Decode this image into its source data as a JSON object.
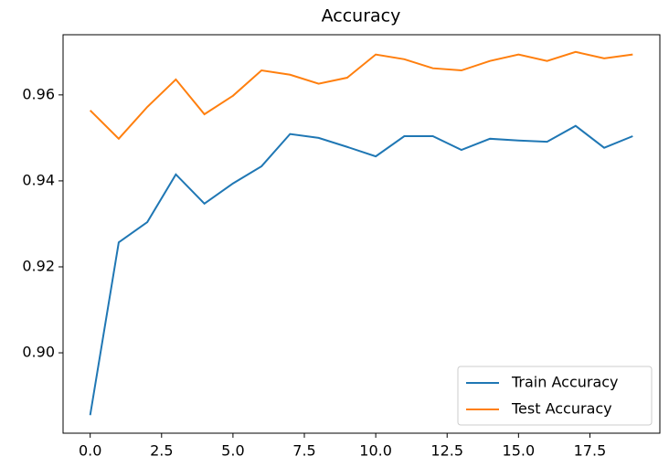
{
  "chart_data": {
    "type": "line",
    "title": "Accuracy",
    "x": [
      0,
      1,
      2,
      3,
      4,
      5,
      6,
      7,
      8,
      9,
      10,
      11,
      12,
      13,
      14,
      15,
      16,
      17,
      18,
      19
    ],
    "series": [
      {
        "name": "Train Accuracy",
        "color": "#1f77b4",
        "values": [
          0.8855,
          0.9257,
          0.9304,
          0.9415,
          0.9347,
          0.9394,
          0.9434,
          0.9509,
          0.95,
          0.9479,
          0.9457,
          0.9504,
          0.9504,
          0.9472,
          0.9498,
          0.9494,
          0.9491,
          0.9528,
          0.9477,
          0.9504
        ]
      },
      {
        "name": "Test Accuracy",
        "color": "#ff7f0e",
        "values": [
          0.9564,
          0.9498,
          0.9572,
          0.9636,
          0.9555,
          0.9598,
          0.9657,
          0.9647,
          0.9626,
          0.964,
          0.9694,
          0.9683,
          0.9662,
          0.9657,
          0.9679,
          0.9694,
          0.9679,
          0.97,
          0.9685,
          0.9694
        ]
      }
    ],
    "xlim": [
      -0.95,
      19.95
    ],
    "xticks": [
      {
        "value": 0,
        "label": "0.0"
      },
      {
        "value": 2.5,
        "label": "2.5"
      },
      {
        "value": 5,
        "label": "5.0"
      },
      {
        "value": 7.5,
        "label": "7.5"
      },
      {
        "value": 10,
        "label": "10.0"
      },
      {
        "value": 12.5,
        "label": "12.5"
      },
      {
        "value": 15,
        "label": "15.0"
      },
      {
        "value": 17.5,
        "label": "17.5"
      }
    ],
    "ylim": [
      0.8813,
      0.974
    ],
    "yticks": [
      {
        "value": 0.9,
        "label": "0.90"
      },
      {
        "value": 0.92,
        "label": "0.92"
      },
      {
        "value": 0.94,
        "label": "0.94"
      },
      {
        "value": 0.96,
        "label": "0.96"
      }
    ],
    "grid": false,
    "legend": "lower right"
  }
}
